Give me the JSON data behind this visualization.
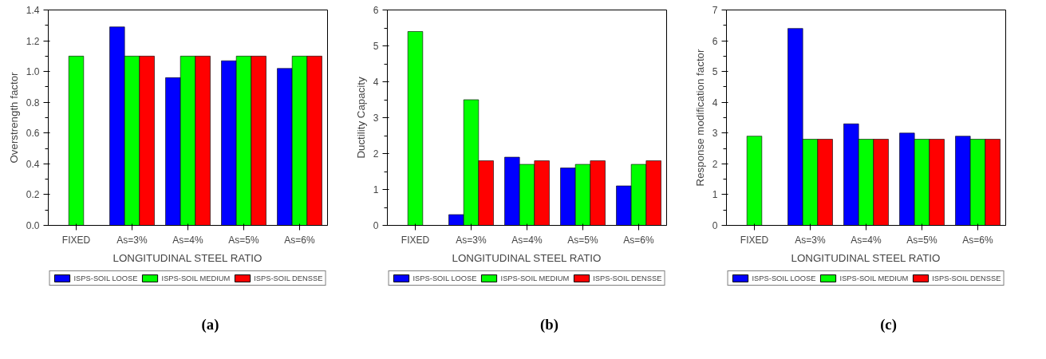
{
  "chart_data": [
    {
      "type": "bar",
      "xlabel": "LONGITUDINAL STEEL RATIO",
      "ylabel": "Overstrength factor",
      "categories": [
        "FIXED",
        "As=3%",
        "As=4%",
        "As=5%",
        "As=6%"
      ],
      "ylim": [
        0,
        1.4
      ],
      "yticks": [
        {
          "value": 0,
          "label": "0.0"
        },
        {
          "value": 0.2,
          "label": "0.2"
        },
        {
          "value": 0.4,
          "label": "0.4"
        },
        {
          "value": 0.6,
          "label": "0.6"
        },
        {
          "value": 0.8,
          "label": "0.8"
        },
        {
          "value": 1,
          "label": "1.0"
        },
        {
          "value": 1.2,
          "label": "1.2"
        },
        {
          "value": 1.4,
          "label": "1.4"
        }
      ],
      "legend": "bottom",
      "annotations": [
        "(a)"
      ],
      "series": [
        {
          "name": "ISPS-SOIL LOOSE",
          "color": "#0000ff",
          "values": [
            null,
            1.29,
            0.96,
            1.07,
            1.02
          ]
        },
        {
          "name": "ISPS-SOIL MEDIUM",
          "color": "#00ff00",
          "values": [
            1.1,
            1.1,
            1.1,
            1.1,
            1.1
          ]
        },
        {
          "name": "ISPS-SOIL DENSSE",
          "color": "#ff0000",
          "values": [
            null,
            1.1,
            1.1,
            1.1,
            1.1
          ]
        }
      ]
    },
    {
      "type": "bar",
      "xlabel": "LONGITUDINAL STEEL RATIO",
      "ylabel": "Ductility Capacity",
      "categories": [
        "FIXED",
        "As=3%",
        "As=4%",
        "As=5%",
        "As=6%"
      ],
      "ylim": [
        0,
        6
      ],
      "yticks": [
        0,
        1,
        2,
        3,
        4,
        5,
        6
      ],
      "legend": "bottom",
      "annotations": [
        "(b)"
      ],
      "series": [
        {
          "name": "ISPS-SOIL LOOSE",
          "color": "#0000ff",
          "values": [
            null,
            0.3,
            1.9,
            1.6,
            1.1
          ]
        },
        {
          "name": "ISPS-SOIL MEDIUM",
          "color": "#00ff00",
          "values": [
            5.4,
            3.5,
            1.7,
            1.7,
            1.7
          ]
        },
        {
          "name": "ISPS-SOIL DENSSE",
          "color": "#ff0000",
          "values": [
            null,
            1.8,
            1.8,
            1.8,
            1.8
          ]
        }
      ]
    },
    {
      "type": "bar",
      "xlabel": "LONGITUDINAL STEEL RATIO",
      "ylabel": "Response modification factor",
      "categories": [
        "FIXED",
        "As=3%",
        "As=4%",
        "As=5%",
        "As=6%"
      ],
      "ylim": [
        0,
        7
      ],
      "yticks": [
        0,
        1,
        2,
        3,
        4,
        5,
        6,
        7
      ],
      "legend": "bottom",
      "annotations": [
        "(c)"
      ],
      "series": [
        {
          "name": "ISPS-SOIL LOOSE",
          "color": "#0000ff",
          "values": [
            null,
            6.4,
            3.3,
            3.0,
            2.9
          ]
        },
        {
          "name": "ISPS-SOIL MEDIUM",
          "color": "#00ff00",
          "values": [
            2.9,
            2.8,
            2.8,
            2.8,
            2.8
          ]
        },
        {
          "name": "ISPS-SOIL DENSSE",
          "color": "#ff0000",
          "values": [
            null,
            2.8,
            2.8,
            2.8,
            2.8
          ]
        }
      ]
    }
  ]
}
